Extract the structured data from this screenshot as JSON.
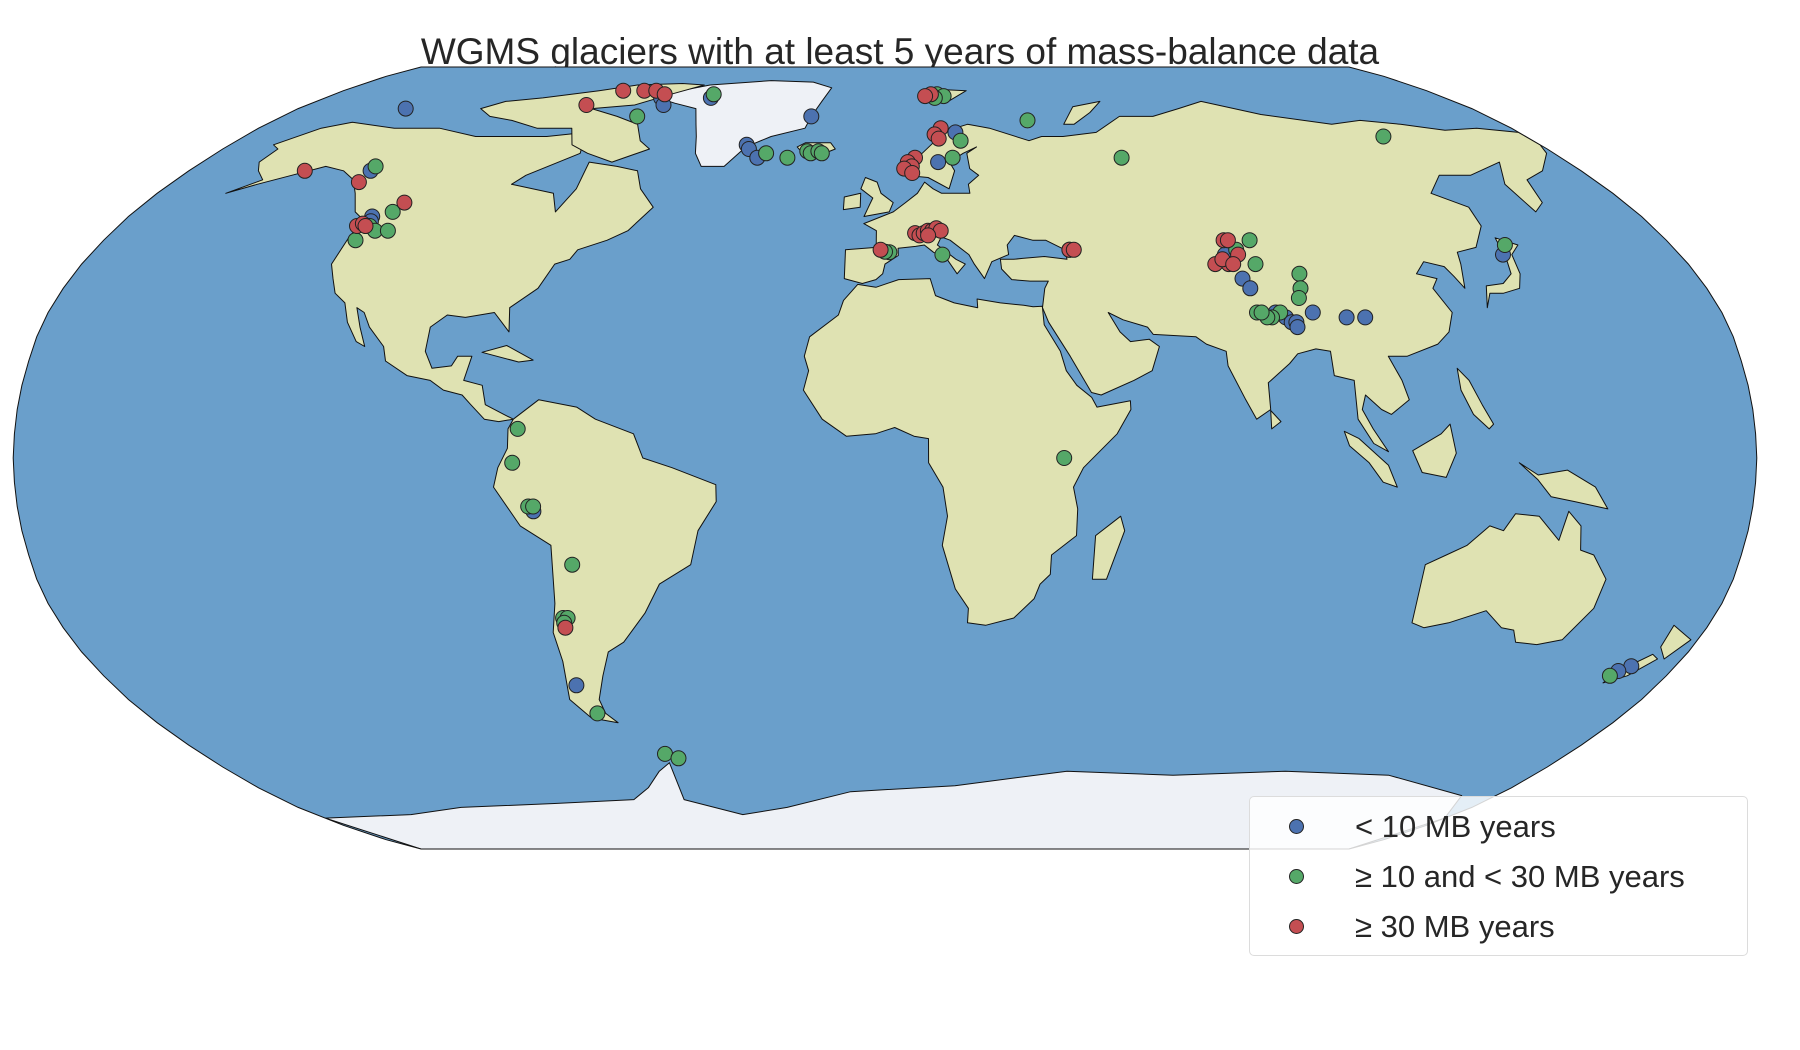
{
  "title": "WGMS glaciers with at least 5 years of mass-balance data",
  "legend": {
    "placement": "lower-right",
    "items": [
      {
        "label": "< 10 MB years",
        "color": "#4c72b0",
        "key": "lt10"
      },
      {
        "label": "≥  10 and < 30 MB years",
        "color": "#55a868",
        "key": "mid"
      },
      {
        "label": "≥  30 MB years",
        "color": "#c44e52",
        "key": "ge30"
      }
    ]
  },
  "colors": {
    "ocean": "#6a9fcb",
    "land": "#dfe2b2",
    "ice": "#eef1f6",
    "coastline": "#111111",
    "marker_edge": "#222222"
  },
  "chart_data": {
    "type": "scatter",
    "projection": "Robinson",
    "x_unit": "longitude (degrees)",
    "y_unit": "latitude (degrees)",
    "series": [
      {
        "key": "lt10",
        "color": "#4c72b0",
        "points": [
          [
            -147,
            75
          ],
          [
            -133,
            60
          ],
          [
            -122,
            50
          ],
          [
            -121.5,
            49
          ],
          [
            -122,
            48
          ],
          [
            -72,
            78
          ],
          [
            -69,
            76
          ],
          [
            -56,
            78
          ],
          [
            -38,
            66
          ],
          [
            -37,
            65
          ],
          [
            -34,
            63
          ],
          [
            -22,
            73
          ],
          [
            16,
            78.5
          ],
          [
            20,
            69
          ],
          [
            14,
            62
          ],
          [
            140,
            42
          ],
          [
            77,
            42
          ],
          [
            79,
            37
          ],
          [
            80,
            35
          ],
          [
            84,
            30
          ],
          [
            86,
            29
          ],
          [
            87,
            28
          ],
          [
            88,
            28
          ],
          [
            88,
            27
          ],
          [
            92,
            30
          ],
          [
            99,
            29
          ],
          [
            103,
            29
          ],
          [
            -73,
            -11
          ],
          [
            -72,
            -47
          ],
          [
            170,
            -43
          ],
          [
            168,
            -44
          ]
        ]
      },
      {
        "key": "mid",
        "color": "#55a868",
        "points": [
          [
            -133,
            61
          ],
          [
            -121,
            48
          ],
          [
            -119,
            47
          ],
          [
            -118,
            51
          ],
          [
            -116,
            47
          ],
          [
            -122,
            45
          ],
          [
            -74,
            73
          ],
          [
            -56,
            79
          ],
          [
            -32,
            64
          ],
          [
            -26,
            63
          ],
          [
            -21,
            64.5
          ],
          [
            -20,
            64
          ],
          [
            -18,
            64.5
          ],
          [
            -17,
            64
          ],
          [
            17,
            79
          ],
          [
            19,
            78.5
          ],
          [
            16,
            78
          ],
          [
            21,
            67
          ],
          [
            18,
            63
          ],
          [
            42,
            72
          ],
          [
            63,
            63
          ],
          [
            140,
            68
          ],
          [
            142,
            44
          ],
          [
            1,
            42.5
          ],
          [
            0,
            42.6
          ],
          [
            13,
            42
          ],
          [
            42,
            43
          ],
          [
            84,
            45
          ],
          [
            80,
            43
          ],
          [
            83,
            40
          ],
          [
            92,
            38
          ],
          [
            91,
            35
          ],
          [
            90,
            33
          ],
          [
            85,
            30
          ],
          [
            83,
            29
          ],
          [
            82,
            29
          ],
          [
            80,
            30
          ],
          [
            81,
            30
          ],
          [
            37,
            0
          ],
          [
            -76,
            6
          ],
          [
            -77,
            -1
          ],
          [
            -74,
            -10
          ],
          [
            -73,
            -10
          ],
          [
            -66,
            -22
          ],
          [
            -70,
            -33
          ],
          [
            -69,
            -33
          ],
          [
            -70,
            -34
          ],
          [
            -70,
            -53
          ],
          [
            -58,
            -62
          ],
          [
            -55,
            -63
          ],
          [
            167,
            -45
          ]
        ]
      },
      {
        "key": "ge30",
        "color": "#c44e52",
        "points": [
          [
            -93,
            76
          ],
          [
            -87,
            80
          ],
          [
            -80,
            80
          ],
          [
            -76,
            80
          ],
          [
            -72,
            79
          ],
          [
            -150,
            60
          ],
          [
            -133,
            57.5
          ],
          [
            -117,
            53
          ],
          [
            -124,
            48
          ],
          [
            -123,
            48.5
          ],
          [
            -122,
            48
          ],
          [
            15,
            79
          ],
          [
            13,
            78.5
          ],
          [
            16,
            70
          ],
          [
            14,
            68.5
          ],
          [
            15,
            67.5
          ],
          [
            8,
            63
          ],
          [
            6,
            62
          ],
          [
            7,
            61
          ],
          [
            5,
            60.5
          ],
          [
            7,
            59.5
          ],
          [
            7,
            46.5
          ],
          [
            8,
            46
          ],
          [
            9,
            46.5
          ],
          [
            10,
            47
          ],
          [
            11,
            47
          ],
          [
            12,
            47.5
          ],
          [
            13,
            47
          ],
          [
            10,
            46
          ],
          [
            -1,
            43
          ],
          [
            42,
            43
          ],
          [
            43,
            43
          ],
          [
            78,
            45
          ],
          [
            79,
            45
          ],
          [
            80,
            42
          ],
          [
            77,
            40
          ],
          [
            74,
            40
          ],
          [
            76,
            41
          ],
          [
            78,
            40
          ],
          [
            -70,
            -35
          ]
        ]
      }
    ]
  }
}
